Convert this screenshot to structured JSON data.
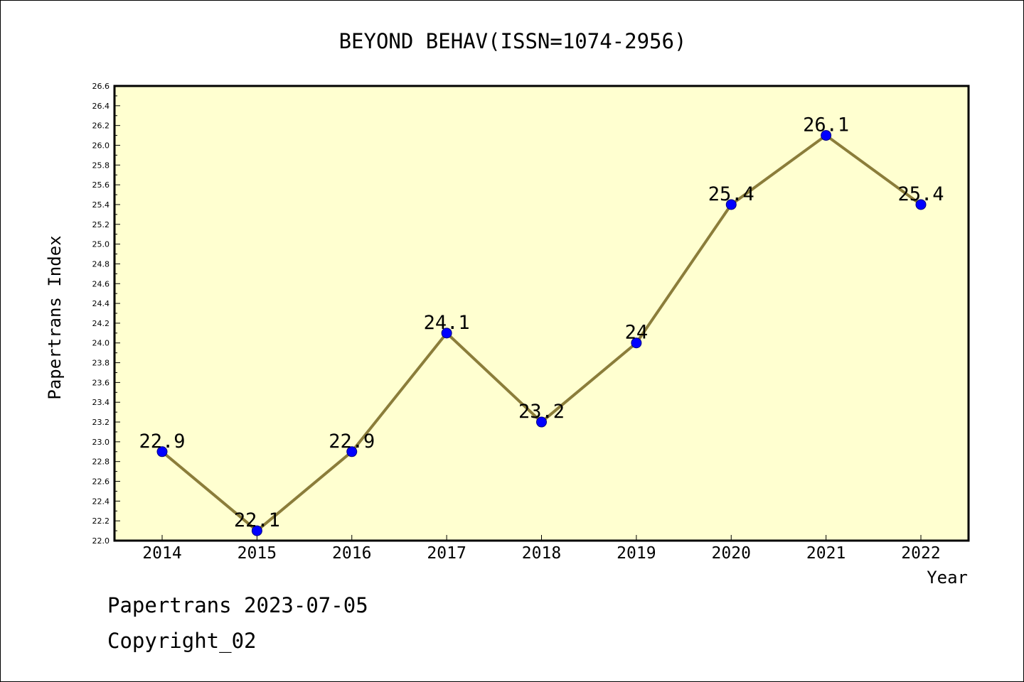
{
  "chart_data": {
    "type": "line",
    "title": "BEYOND BEHAV(ISSN=1074-2956)",
    "xlabel": "Year",
    "ylabel": "Papertrans Index",
    "categories": [
      "2014",
      "2015",
      "2016",
      "2017",
      "2018",
      "2019",
      "2020",
      "2021",
      "2022"
    ],
    "series": [
      {
        "values": [
          22.9,
          22.1,
          22.9,
          24.1,
          23.2,
          24.0,
          25.4,
          26.1,
          25.4
        ],
        "data_labels": [
          "22.9",
          "22.1",
          "22.9",
          "24.1",
          "23.2",
          "24",
          "25.4",
          "26.1",
          "25.4"
        ]
      }
    ],
    "ylim": [
      22.0,
      26.6
    ],
    "yticks": [
      "22.0",
      "22.2",
      "22.4",
      "22.6",
      "22.8",
      "23.0",
      "23.2",
      "23.4",
      "23.6",
      "23.8",
      "24.0",
      "24.2",
      "24.4",
      "24.6",
      "24.8",
      "25.0",
      "25.2",
      "25.4",
      "25.6",
      "25.8",
      "26.0",
      "26.2",
      "26.4",
      "26.6"
    ],
    "grid": false,
    "legend": "none",
    "colors": {
      "plot_background": "#ffffd0",
      "line": "#8b7d3a",
      "marker": "#0000ff",
      "axes": "#000000"
    }
  },
  "footer": {
    "date_line": "Papertrans 2023-07-05",
    "copyright_line": "Copyright_02"
  }
}
